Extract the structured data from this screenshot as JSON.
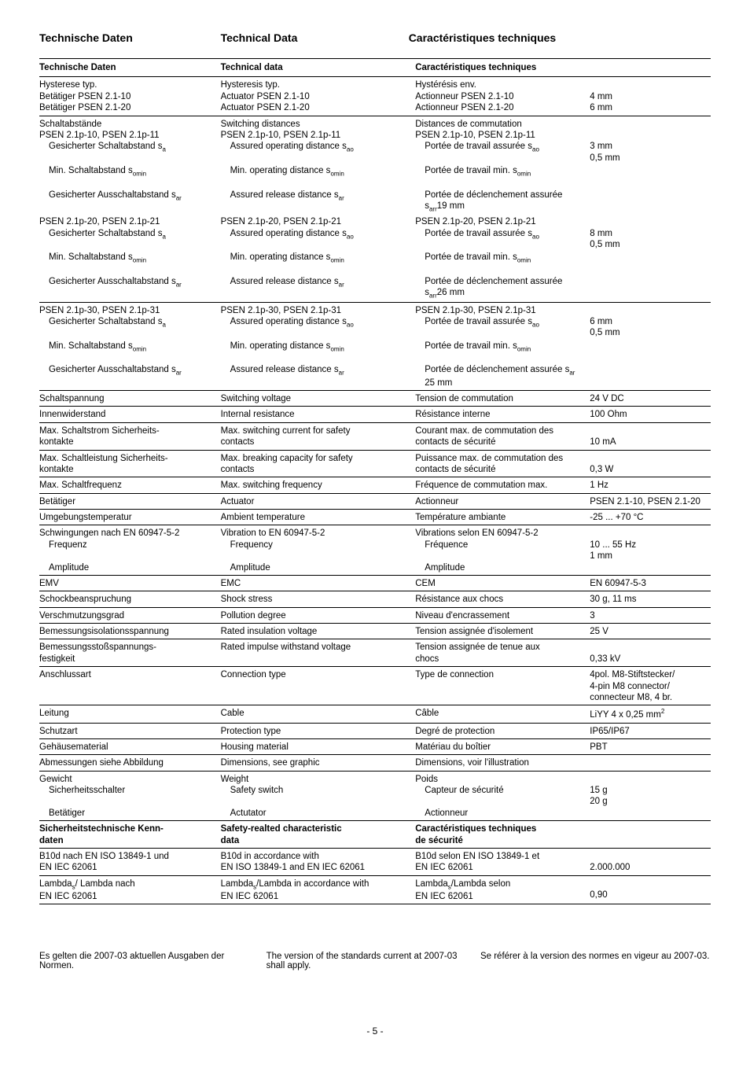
{
  "headings": {
    "de": "Technische Daten",
    "en": "Technical Data",
    "fr": "Caractéristiques techniques"
  },
  "tableHeaders": {
    "de": "Technische Daten",
    "en": "Technical data",
    "fr": "Caractéristiques techniques",
    "val": ""
  },
  "rows": [
    {
      "sep": true,
      "de": [
        "Hysterese typ.",
        "Betätiger PSEN 2.1-10",
        "Betätiger PSEN 2.1-20"
      ],
      "en": [
        "Hysteresis typ.",
        "Actuator PSEN 2.1-10",
        "Actuator PSEN 2.1-20"
      ],
      "fr": [
        "Hystérésis env.",
        "Actionneur PSEN 2.1-10",
        "Actionneur PSEN 2.1-20"
      ],
      "val": [
        "",
        "4 mm",
        "6 mm"
      ]
    },
    {
      "sep": true,
      "de": [
        "Schaltabstände",
        "PSEN 2.1p-10, PSEN 2.1p-11",
        "  Gesicherter Schaltabstand s<sub>a</sub>",
        "  Min. Schaltabstand s<sub>omin</sub>",
        "  Gesicherter Ausschaltabstand s<sub>ar</sub>"
      ],
      "en": [
        "Switching distances",
        "PSEN 2.1p-10, PSEN 2.1p-11",
        "  Assured operating distance s<sub>ao</sub>",
        "  Min. operating distance s<sub>omin</sub>",
        "  Assured release distance s<sub>ar</sub>"
      ],
      "fr": [
        "Distances de commutation",
        "PSEN 2.1p-10, PSEN 2.1p-11",
        "  Portée de travail assurée s<sub>ao</sub>",
        "  Portée de travail min. s<sub>omin</sub>",
        "  Portée de déclenchement assurée s<sub>arr</sub>19 mm"
      ],
      "val": [
        "",
        "",
        "3 mm",
        "0,5 mm",
        ""
      ]
    },
    {
      "sep": false,
      "de": [
        "PSEN 2.1p-20, PSEN 2.1p-21",
        "  Gesicherter Schaltabstand s<sub>a</sub>",
        "  Min. Schaltabstand s<sub>omin</sub>",
        "  Gesicherter Ausschaltabstand s<sub>ar</sub>"
      ],
      "en": [
        "PSEN 2.1p-20, PSEN 2.1p-21",
        "  Assured operating distance s<sub>ao</sub>",
        "  Min. operating distance s<sub>omin</sub>",
        "  Assured release distance s<sub>ar</sub>"
      ],
      "fr": [
        "PSEN 2.1p-20, PSEN 2.1p-21",
        "  Portée de travail assurée s<sub>ao</sub>",
        "  Portée de travail min. s<sub>omin</sub>",
        "  Portée de déclenchement assurée s<sub>arr</sub>26 mm"
      ],
      "val": [
        "",
        "8 mm",
        "0,5 mm",
        ""
      ]
    },
    {
      "sep": true,
      "de": [
        "PSEN 2.1p-30, PSEN 2.1p-31",
        "  Gesicherter Schaltabstand s<sub>a</sub>",
        "  Min. Schaltabstand s<sub>omin</sub>",
        "  Gesicherter Ausschaltabstand s<sub>ar</sub>"
      ],
      "en": [
        "PSEN 2.1p-30, PSEN 2.1p-31",
        "  Assured operating distance s<sub>ao</sub>",
        "  Min. operating distance s<sub>omin</sub>",
        "  Assured release distance s<sub>ar</sub>"
      ],
      "fr": [
        "PSEN 2.1p-30, PSEN 2.1p-31",
        "  Portée de travail assurée s<sub>ao</sub>",
        "  Portée de travail min. s<sub>omin</sub>",
        "  Portée de déclenchement assurée s<sub>ar</sub> 25 mm"
      ],
      "val": [
        "",
        "6 mm",
        "0,5 mm",
        ""
      ]
    },
    {
      "sep": true,
      "de": [
        "Schaltspannung"
      ],
      "en": [
        "Switching voltage"
      ],
      "fr": [
        "Tension de commutation"
      ],
      "val": [
        "24 V DC"
      ]
    },
    {
      "sep": true,
      "de": [
        "Innenwiderstand"
      ],
      "en": [
        "Internal resistance"
      ],
      "fr": [
        "Résistance interne"
      ],
      "val": [
        "100 Ohm"
      ]
    },
    {
      "sep": true,
      "de": [
        "Max. Schaltstrom Sicherheits-",
        "kontakte"
      ],
      "en": [
        "Max. switching current for safety",
        "contacts"
      ],
      "fr": [
        "Courant max. de commutation des",
        "contacts de sécurité"
      ],
      "val": [
        "",
        "10 mA"
      ]
    },
    {
      "sep": true,
      "de": [
        "Max. Schaltleistung Sicherheits-",
        "kontakte"
      ],
      "en": [
        "Max. breaking capacity for safety",
        "contacts"
      ],
      "fr": [
        "Puissance max. de commutation des",
        "contacts de sécurité"
      ],
      "val": [
        "",
        "0,3 W"
      ]
    },
    {
      "sep": true,
      "de": [
        "Max. Schaltfrequenz"
      ],
      "en": [
        "Max. switching frequency"
      ],
      "fr": [
        "Fréquence de commutation max."
      ],
      "val": [
        "1 Hz"
      ]
    },
    {
      "sep": true,
      "de": [
        "Betätiger"
      ],
      "en": [
        "Actuator"
      ],
      "fr": [
        "Actionneur"
      ],
      "val": [
        "PSEN 2.1-10, PSEN 2.1-20"
      ]
    },
    {
      "sep": true,
      "de": [
        "Umgebungstemperatur"
      ],
      "en": [
        "Ambient temperature"
      ],
      "fr": [
        "Température ambiante"
      ],
      "val": [
        "-25 ... +70 °C"
      ]
    },
    {
      "sep": true,
      "de": [
        "Schwingungen nach EN 60947-5-2",
        "  Frequenz",
        "  Amplitude"
      ],
      "en": [
        "Vibration to EN 60947-5-2",
        "  Frequency",
        "  Amplitude"
      ],
      "fr": [
        "Vibrations selon EN 60947-5-2",
        "  Fréquence",
        "  Amplitude"
      ],
      "val": [
        "",
        "10 ... 55 Hz",
        "1 mm"
      ]
    },
    {
      "sep": true,
      "de": [
        "EMV"
      ],
      "en": [
        "EMC"
      ],
      "fr": [
        "CEM"
      ],
      "val": [
        "EN 60947-5-3"
      ]
    },
    {
      "sep": true,
      "de": [
        "Schockbeanspruchung"
      ],
      "en": [
        "Shock stress"
      ],
      "fr": [
        "Résistance aux chocs"
      ],
      "val": [
        "30 g, 11 ms"
      ]
    },
    {
      "sep": true,
      "de": [
        "Verschmutzungsgrad"
      ],
      "en": [
        "Pollution degree"
      ],
      "fr": [
        "Niveau d'encrassement"
      ],
      "val": [
        "3"
      ]
    },
    {
      "sep": true,
      "de": [
        "Bemessungsisolationsspannung"
      ],
      "en": [
        "Rated insulation voltage"
      ],
      "fr": [
        "Tension assignée d'isolement"
      ],
      "val": [
        "25 V"
      ]
    },
    {
      "sep": true,
      "de": [
        "Bemessungsstoßspannungs-",
        "festigkeit"
      ],
      "en": [
        "Rated impulse withstand voltage",
        ""
      ],
      "fr": [
        "Tension assignée de tenue aux",
        "chocs"
      ],
      "val": [
        "",
        "0,33 kV"
      ]
    },
    {
      "sep": true,
      "de": [
        "Anschlussart"
      ],
      "en": [
        "Connection type"
      ],
      "fr": [
        "Type de connection"
      ],
      "val": [
        "4pol. M8-Stiftstecker/",
        "4-pin M8 connector/",
        "connecteur M8, 4 br."
      ]
    },
    {
      "sep": true,
      "de": [
        "Leitung"
      ],
      "en": [
        "Cable"
      ],
      "fr": [
        "Câble"
      ],
      "val": [
        "LiYY 4 x 0,25 mm<sup>2</sup>"
      ]
    },
    {
      "sep": true,
      "de": [
        "Schutzart"
      ],
      "en": [
        "Protection type"
      ],
      "fr": [
        "Degré de protection"
      ],
      "val": [
        "IP65/IP67"
      ]
    },
    {
      "sep": true,
      "de": [
        "Gehäusematerial"
      ],
      "en": [
        "Housing material"
      ],
      "fr": [
        "Matériau du boîtier"
      ],
      "val": [
        "PBT"
      ]
    },
    {
      "sep": true,
      "de": [
        "Abmessungen siehe Abbildung"
      ],
      "en": [
        "Dimensions,  see graphic"
      ],
      "fr": [
        "Dimensions, voir l'illustration"
      ],
      "val": [
        ""
      ]
    },
    {
      "sep": true,
      "de": [
        "Gewicht",
        "  Sicherheitsschalter",
        "  Betätiger"
      ],
      "en": [
        "Weight",
        "  Safety switch",
        "  Actutator"
      ],
      "fr": [
        "Poids",
        "  Capteur de sécurité",
        "  Actionneur"
      ],
      "val": [
        "",
        "15 g",
        "20 g"
      ]
    },
    {
      "bold": true,
      "sep": true,
      "de": [
        "Sicherheitstechnische Kenn-",
        "daten"
      ],
      "en": [
        "Safety-realted characteristic",
        "data"
      ],
      "fr": [
        "Caractéristiques techniques",
        "de sécurité"
      ],
      "val": [
        "",
        ""
      ]
    },
    {
      "sep": true,
      "de": [
        "B10d nach EN ISO 13849-1 und",
        "EN IEC 62061"
      ],
      "en": [
        "B10d in accordance with",
        "EN ISO 13849-1 and EN IEC 62061"
      ],
      "fr": [
        "B10d selon EN ISO 13849-1 et",
        "EN IEC 62061"
      ],
      "val": [
        "",
        "2.000.000"
      ]
    },
    {
      "sep": true,
      "de": [
        "Lambda<sub>s</sub>/ Lambda nach",
        "EN IEC 62061"
      ],
      "en": [
        "Lambda<sub>s</sub>/Lambda in accordance with",
        "EN IEC 62061"
      ],
      "fr": [
        "Lambda<sub>s</sub>/Lambda selon",
        "EN IEC 62061"
      ],
      "val": [
        "",
        "0,90"
      ]
    },
    {
      "sep": true,
      "de": [
        ""
      ],
      "en": [
        ""
      ],
      "fr": [
        ""
      ],
      "val": [
        ""
      ],
      "lastBorder": true
    }
  ],
  "footnotes": {
    "de": "Es gelten die 2007-03 aktuellen Ausgaben der Normen.",
    "en": "The version of the standards current at 2007-03 shall apply.",
    "fr": "Se référer à la version des normes en vigeur au 2007-03."
  },
  "pageNumber": "- 5 -"
}
